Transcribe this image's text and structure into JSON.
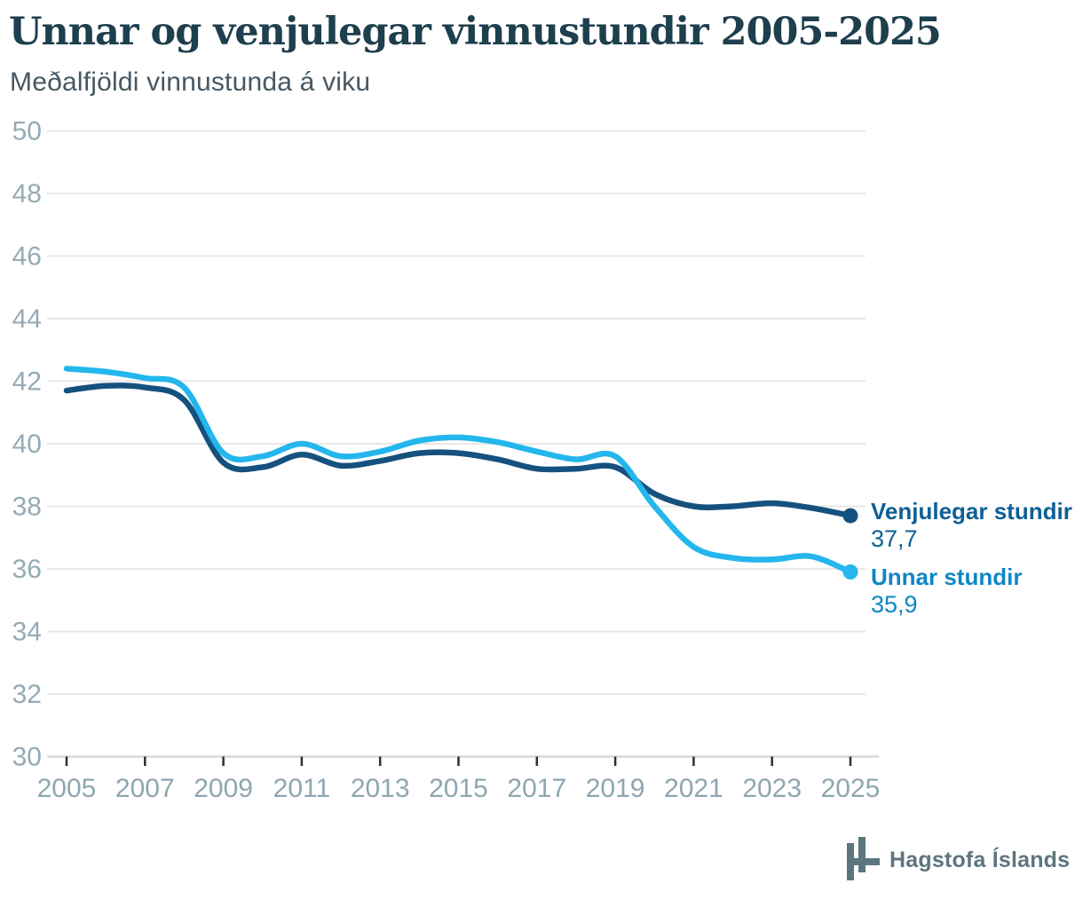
{
  "header": {
    "title": "Unnar og venjulegar vinnustundir 2005-2025",
    "subtitle": "Meðalfjöldi vinnustunda á viku"
  },
  "footer": {
    "brand": "Hagstofa Íslands"
  },
  "palette": {
    "title": "#1e3f4d",
    "subtitle": "#475761",
    "axis_label": "#95aab4",
    "xaxis_label": "#8ea6b0",
    "grid": "#e7e7e7",
    "axis_line": "#d9d9d9",
    "tick": "#2e2e2e",
    "series_navy": "#15517e",
    "series_cyan": "#24b6ec",
    "label_navy": "#0f6095",
    "label_cyan": "#0e86c6",
    "brand_gray": "#5d757e"
  },
  "chart_data": {
    "type": "line",
    "title": "Unnar og venjulegar vinnustundir 2005-2025",
    "subtitle": "Meðalfjöldi vinnustunda á viku",
    "xlabel": "",
    "ylabel": "",
    "ylim": [
      30,
      50
    ],
    "yticks": [
      30,
      32,
      34,
      36,
      38,
      40,
      42,
      44,
      46,
      48,
      50
    ],
    "xticks": [
      2005,
      2007,
      2009,
      2011,
      2013,
      2015,
      2017,
      2019,
      2021,
      2023,
      2025
    ],
    "grid": "horizontal",
    "legend_position": "end-of-line",
    "x": [
      2005,
      2006,
      2007,
      2008,
      2009,
      2010,
      2011,
      2012,
      2013,
      2014,
      2015,
      2016,
      2017,
      2018,
      2019,
      2020,
      2021,
      2022,
      2023,
      2024,
      2025
    ],
    "series": [
      {
        "name": "Venjulegar stundir",
        "color_key": "series_navy",
        "label_color_key": "label_navy",
        "end_label": "Venjulegar stundir",
        "end_value": 37.7,
        "end_value_text": "37,7",
        "values": [
          41.7,
          41.85,
          41.8,
          41.4,
          39.4,
          39.25,
          39.65,
          39.3,
          39.45,
          39.7,
          39.7,
          39.5,
          39.2,
          39.2,
          39.25,
          38.4,
          38.0,
          38.0,
          38.1,
          37.95,
          37.7
        ]
      },
      {
        "name": "Unnar stundir",
        "color_key": "series_cyan",
        "label_color_key": "label_cyan",
        "end_label": "Unnar stundir",
        "end_value": 35.9,
        "end_value_text": "35,9",
        "values": [
          42.4,
          42.3,
          42.1,
          41.8,
          39.7,
          39.6,
          40.0,
          39.6,
          39.75,
          40.1,
          40.2,
          40.05,
          39.75,
          39.5,
          39.6,
          38.0,
          36.7,
          36.35,
          36.3,
          36.4,
          35.9
        ]
      }
    ]
  }
}
